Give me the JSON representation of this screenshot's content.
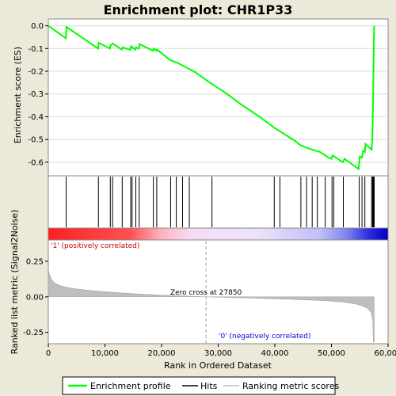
{
  "chart_data": {
    "type": "line",
    "title": "Enrichment plot: CHR1P33",
    "top_panel": {
      "ylabel": "Enrichment score (ES)",
      "ylim": [
        -0.66,
        0.03
      ],
      "yticks": [
        "0.0",
        "-0.1",
        "-0.2",
        "-0.3",
        "-0.4",
        "-0.5",
        "-0.6"
      ],
      "ytick_values": [
        0.0,
        -0.1,
        -0.2,
        -0.3,
        -0.4,
        -0.5,
        -0.6
      ],
      "series": [
        {
          "name": "Enrichment profile",
          "color": "#00FF00",
          "x": [
            0,
            3100,
            3200,
            8800,
            8900,
            10900,
            11000,
            11300,
            11400,
            13000,
            13100,
            14500,
            14600,
            15400,
            15500,
            16000,
            16100,
            18500,
            18600,
            19100,
            19200,
            21500,
            23000,
            26000,
            28500,
            31000,
            34000,
            37000,
            40000,
            43500,
            44500,
            46000,
            48000,
            49500,
            50000,
            50200,
            52000,
            52300,
            54800,
            55000,
            55400,
            55600,
            55900,
            56000,
            57100,
            57200,
            57300,
            57350,
            57400,
            57450,
            57500,
            57550
          ],
          "y": [
            0.0,
            -0.055,
            -0.005,
            -0.1,
            -0.075,
            -0.1,
            -0.085,
            -0.08,
            -0.078,
            -0.105,
            -0.095,
            -0.105,
            -0.09,
            -0.105,
            -0.095,
            -0.1,
            -0.08,
            -0.11,
            -0.1,
            -0.11,
            -0.105,
            -0.15,
            -0.165,
            -0.205,
            -0.25,
            -0.29,
            -0.345,
            -0.395,
            -0.45,
            -0.505,
            -0.525,
            -0.54,
            -0.555,
            -0.58,
            -0.585,
            -0.57,
            -0.6,
            -0.585,
            -0.63,
            -0.575,
            -0.58,
            -0.55,
            -0.555,
            -0.52,
            -0.545,
            -0.49,
            -0.4,
            -0.33,
            -0.24,
            -0.14,
            -0.05,
            0.0
          ]
        }
      ]
    },
    "hits": {
      "name": "Hits",
      "positions": [
        3150,
        8850,
        10950,
        11350,
        13050,
        14550,
        14800,
        15450,
        16050,
        18550,
        19150,
        21600,
        22600,
        23700,
        24900,
        28900,
        39900,
        40900,
        44600,
        45600,
        46600,
        47500,
        48900,
        50100,
        50400,
        52100,
        54900,
        55400,
        55900,
        57100,
        57250,
        57350,
        57450,
        57550
      ]
    },
    "bottom_panel": {
      "ylabel": "Ranked list metric (Signal2Noise)",
      "ylim": [
        -0.33,
        0.4
      ],
      "yticks": [
        "0.25",
        "0.00",
        "-0.25"
      ],
      "ytick_values": [
        0.25,
        0.0,
        -0.25
      ],
      "series_name": "Ranking metric scores",
      "x": [
        0,
        200,
        500,
        1000,
        2000,
        3500,
        5000,
        8000,
        12000,
        16000,
        20000,
        24000,
        27850,
        31000,
        35000,
        39000,
        43000,
        47000,
        50000,
        52000,
        53500,
        54500,
        55500,
        56300,
        57000,
        57300,
        57400,
        57550
      ],
      "y": [
        0.2,
        0.16,
        0.13,
        0.1,
        0.08,
        0.065,
        0.055,
        0.042,
        0.03,
        0.02,
        0.012,
        0.006,
        0.0,
        -0.004,
        -0.008,
        -0.013,
        -0.018,
        -0.024,
        -0.03,
        -0.037,
        -0.045,
        -0.053,
        -0.065,
        -0.08,
        -0.11,
        -0.17,
        -0.32,
        -0.32
      ],
      "zero_cross": 27850,
      "zero_cross_label": "Zero cross at 27850",
      "positive_label": "'1' (positively correlated)",
      "negative_label": "'0' (negatively correlated)"
    },
    "xlabel": "Rank in Ordered Dataset",
    "xlim": [
      0,
      60000
    ],
    "xticks": [
      "0",
      "10,000",
      "20,000",
      "30,000",
      "40,000",
      "50,000",
      "60,000"
    ],
    "xtick_values": [
      0,
      10000,
      20000,
      30000,
      40000,
      50000,
      60000
    ],
    "n_genes": 57550,
    "legend": {
      "placement": "bottom",
      "entries": [
        "Enrichment profile",
        "Hits",
        "Ranking metric scores"
      ]
    },
    "colors": {
      "profile": "#00FF00",
      "hits": "#000000",
      "metric_fill": "#BEBEBE",
      "positive": "#FF0000",
      "negative": "#0000FF",
      "positive_label": "#CC0000",
      "negative_label": "#0000CC"
    }
  }
}
